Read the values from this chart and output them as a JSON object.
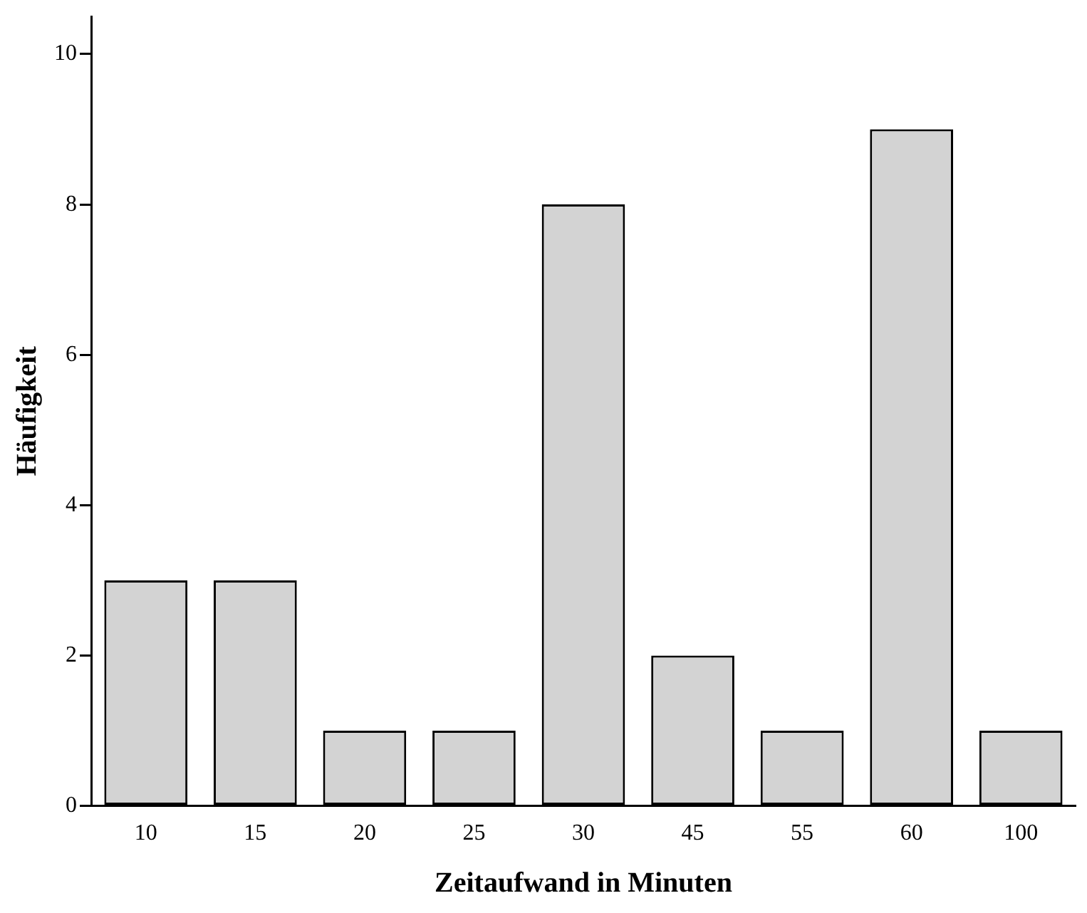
{
  "chart_data": {
    "type": "bar",
    "xlabel": "Zeitaufwand in Minuten",
    "ylabel": "Häufigkeit",
    "categories": [
      "10",
      "15",
      "20",
      "25",
      "30",
      "45",
      "55",
      "60",
      "100"
    ],
    "values": [
      3,
      3,
      1,
      1,
      8,
      2,
      1,
      9,
      1
    ],
    "color": "#d3d3d3",
    "ylim": [
      0,
      10.5
    ],
    "yticks": [
      0,
      2,
      4,
      6,
      8,
      10
    ],
    "grid": false,
    "legend": false
  }
}
